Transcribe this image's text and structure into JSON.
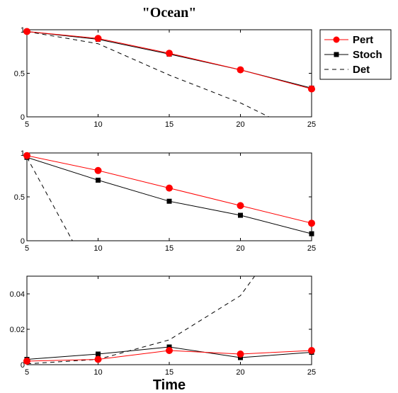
{
  "chart_data": {
    "title": "\"Ocean\"",
    "xlabel": "Time",
    "legend": {
      "placement": "right",
      "entries": [
        {
          "key": "pert",
          "label": "Pert"
        },
        {
          "key": "stoch",
          "label": "Stoch"
        },
        {
          "key": "det",
          "label": "Det"
        }
      ]
    },
    "styles": {
      "pert": {
        "color": "#ff0000",
        "marker": "circle",
        "dash": "none"
      },
      "stoch": {
        "color": "#000000",
        "marker": "square",
        "dash": "none"
      },
      "det": {
        "color": "#000000",
        "marker": "none",
        "dash": "6,5"
      }
    },
    "panels": [
      {
        "type": "line",
        "xlim": [
          5,
          25
        ],
        "ylim": [
          0,
          1
        ],
        "xticks": [
          "5",
          "10",
          "15",
          "20",
          "25"
        ],
        "yticks": [
          "0",
          "0.5",
          "1"
        ],
        "series": [
          {
            "key": "pert",
            "x": [
              5,
              10,
              15,
              20,
              25
            ],
            "y": [
              0.98,
              0.9,
              0.73,
              0.54,
              0.32
            ]
          },
          {
            "key": "stoch",
            "x": [
              5,
              10,
              15,
              20,
              25
            ],
            "y": [
              0.98,
              0.89,
              0.72,
              0.54,
              0.33
            ]
          },
          {
            "key": "det",
            "x": [
              5,
              10,
              15,
              20,
              22
            ],
            "y": [
              0.98,
              0.84,
              0.48,
              0.16,
              0.0
            ]
          }
        ]
      },
      {
        "type": "line",
        "xlim": [
          5,
          25
        ],
        "ylim": [
          0,
          1
        ],
        "xticks": [
          "5",
          "10",
          "15",
          "20",
          "25"
        ],
        "yticks": [
          "0",
          "0.5",
          "1"
        ],
        "series": [
          {
            "key": "pert",
            "x": [
              5,
              10,
              15,
              20,
              25
            ],
            "y": [
              0.97,
              0.8,
              0.6,
              0.4,
              0.2
            ]
          },
          {
            "key": "stoch",
            "x": [
              5,
              10,
              15,
              20,
              25
            ],
            "y": [
              0.95,
              0.69,
              0.45,
              0.29,
              0.08
            ]
          },
          {
            "key": "det",
            "x": [
              5,
              8.2
            ],
            "y": [
              0.95,
              0.0
            ]
          }
        ]
      },
      {
        "type": "line",
        "xlim": [
          5,
          25
        ],
        "ylim": [
          0,
          0.05
        ],
        "xticks": [
          "5",
          "10",
          "15",
          "20",
          "25"
        ],
        "yticks": [
          "0",
          "0.02",
          "0.04"
        ],
        "series": [
          {
            "key": "pert",
            "x": [
              5,
              10,
              15,
              20,
              25
            ],
            "y": [
              0.002,
              0.003,
              0.008,
              0.006,
              0.008
            ]
          },
          {
            "key": "stoch",
            "x": [
              5,
              10,
              15,
              20,
              25
            ],
            "y": [
              0.003,
              0.006,
              0.01,
              0.004,
              0.007
            ]
          },
          {
            "key": "det",
            "x": [
              5,
              10,
              15,
              20,
              21
            ],
            "y": [
              0.0005,
              0.003,
              0.014,
              0.039,
              0.05
            ]
          }
        ]
      }
    ]
  }
}
